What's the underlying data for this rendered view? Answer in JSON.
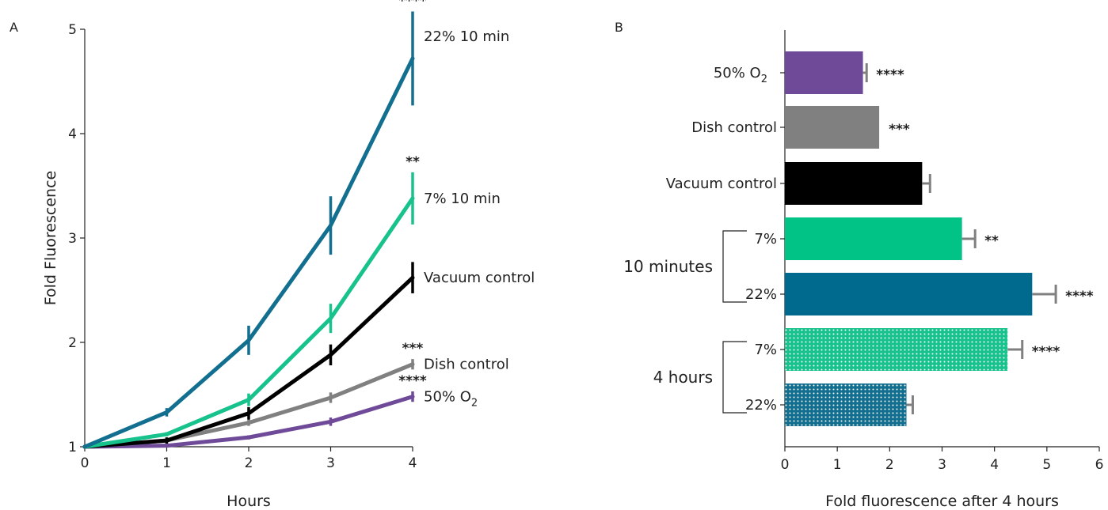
{
  "chart_data": [
    {
      "panel": "A",
      "type": "line",
      "xlabel": "Hours",
      "ylabel": "Fold Fluorescence",
      "xlim": [
        0,
        4
      ],
      "ylim": [
        1,
        5
      ],
      "x_ticks": [
        "0",
        "1",
        "2",
        "3",
        "4"
      ],
      "y_ticks": [
        "1",
        "2",
        "3",
        "4",
        "5"
      ],
      "x": [
        0,
        1,
        2,
        3,
        4
      ],
      "grid": false,
      "series": [
        {
          "name": "22% 10 min",
          "color": "#136f8f",
          "values": [
            1.0,
            1.33,
            2.02,
            3.12,
            4.72
          ],
          "errors": [
            0,
            0.04,
            0.14,
            0.28,
            0.45
          ],
          "significance": "****"
        },
        {
          "name": "7% 10 min",
          "color": "#17c28c",
          "values": [
            1.0,
            1.12,
            1.45,
            2.23,
            3.38
          ],
          "errors": [
            0,
            0.02,
            0.06,
            0.14,
            0.25
          ],
          "significance": "**"
        },
        {
          "name": "Vacuum control",
          "color": "#000000",
          "values": [
            1.0,
            1.06,
            1.32,
            1.88,
            2.62
          ],
          "errors": [
            0,
            0.03,
            0.06,
            0.1,
            0.15
          ],
          "significance": ""
        },
        {
          "name": "Dish control",
          "color": "#808080",
          "values": [
            1.0,
            1.06,
            1.23,
            1.47,
            1.79
          ],
          "errors": [
            0,
            0.02,
            0.03,
            0.05,
            0.05
          ],
          "significance": "***"
        },
        {
          "name": "50% O",
          "name_subscript": "2",
          "color": "#6f4a98",
          "values": [
            1.0,
            1.01,
            1.09,
            1.24,
            1.48
          ],
          "errors": [
            0,
            0.01,
            0.02,
            0.04,
            0.05
          ],
          "significance": "****"
        }
      ]
    },
    {
      "panel": "B",
      "type": "bar",
      "orientation": "horizontal",
      "xlabel": "Fold fluorescence after 4 hours",
      "xlim": [
        0,
        6
      ],
      "x_ticks": [
        "0",
        "1",
        "2",
        "3",
        "4",
        "5",
        "6"
      ],
      "grid": false,
      "groups": [
        {
          "label": "10 minutes",
          "bars": [
            3,
            4
          ]
        },
        {
          "label": "4 hours",
          "bars": [
            5,
            6
          ]
        }
      ],
      "bars": [
        {
          "label": "50% O",
          "label_subscript": "2",
          "value": 1.49,
          "error": 0.07,
          "color": "#6f4a98",
          "pattern": "solid",
          "significance": "****"
        },
        {
          "label": "Dish control",
          "value": 1.8,
          "error": 0,
          "color": "#808080",
          "pattern": "solid",
          "significance": "***"
        },
        {
          "label": "Vacuum control",
          "value": 2.62,
          "error": 0.15,
          "color": "#000000",
          "pattern": "solid",
          "significance": ""
        },
        {
          "label": "7%",
          "value": 3.38,
          "error": 0.25,
          "color": "#00c385",
          "pattern": "solid",
          "significance": "**"
        },
        {
          "label": "22%",
          "value": 4.72,
          "error": 0.45,
          "color": "#006a8e",
          "pattern": "solid",
          "significance": "****"
        },
        {
          "label": "7%",
          "value": 4.25,
          "error": 0.28,
          "color": "#17c28c",
          "pattern": "dotted",
          "significance": "****"
        },
        {
          "label": "22%",
          "value": 2.32,
          "error": 0.12,
          "color": "#136f8f",
          "pattern": "dotted",
          "significance": ""
        }
      ]
    }
  ]
}
